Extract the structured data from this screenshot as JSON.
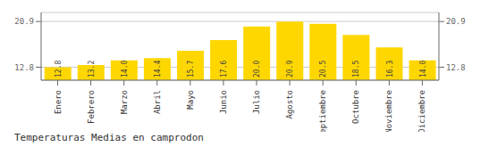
{
  "chart_data": {
    "type": "bar",
    "title": "Temperaturas Medias en camprodon",
    "categories": [
      "Enero",
      "Febrero",
      "Marzo",
      "Abril",
      "Mayo",
      "Junio",
      "Julio",
      "Agosto",
      "Septiembre",
      "Octubre",
      "Noviembre",
      "Diciembre"
    ],
    "values": [
      12.8,
      13.2,
      14.0,
      14.4,
      15.7,
      17.6,
      20.0,
      20.9,
      20.5,
      18.5,
      16.3,
      14.0
    ],
    "value_labels": [
      "12.8",
      "13.2",
      "14.0",
      "14.4",
      "15.7",
      "17.6",
      "20.0",
      "20.9",
      "20.5",
      "18.5",
      "16.3",
      "14.0"
    ],
    "color": "#FFD700",
    "ylim": [
      10.5,
      22.5
    ],
    "yticks": [
      12.8,
      20.9
    ],
    "y2lim": [
      10.5,
      22.5
    ],
    "y2ticks": [
      12.8,
      20.9
    ],
    "grid": true,
    "data_labels": true
  }
}
